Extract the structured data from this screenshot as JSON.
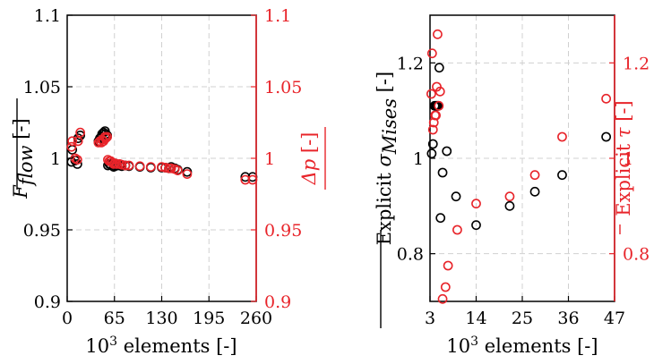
{
  "colors": {
    "left_series": "#000000",
    "right_series": "#e8242a"
  },
  "chart_data": [
    {
      "type": "scatter",
      "xlabel": "10³ elements [-]",
      "xlabel_parts": {
        "base": "10",
        "exp": "3",
        "rest": " elements [-]"
      },
      "ylabel": "F̅flow [-]",
      "ylabel_parts": {
        "main": "F",
        "sub": "flow",
        "unit": " [-]"
      },
      "y2label": "Δp̅ [-]",
      "y2label_parts": {
        "main": "Δp",
        "unit": " [-]"
      },
      "xlim": [
        0,
        260
      ],
      "ylim": [
        0.9,
        1.1
      ],
      "y2lim": [
        0.9,
        1.1
      ],
      "xticks": [
        0,
        65,
        130,
        195,
        260
      ],
      "yticks": [
        0.9,
        0.95,
        1,
        1.05,
        1.1
      ],
      "y2ticks": [
        0.9,
        0.95,
        1,
        1.05,
        1.1
      ],
      "ytick_labels": [
        "0.9",
        "0.95",
        "1",
        "1.05",
        "1.1"
      ],
      "grid": true,
      "series": [
        {
          "axis": "left",
          "color": "#000000",
          "x": [
            6,
            7,
            11,
            14,
            15,
            18,
            43,
            45,
            47,
            48,
            50,
            52,
            53,
            55,
            56,
            58,
            60,
            62,
            64,
            66,
            68,
            72,
            75,
            80,
            85,
            100,
            115,
            130,
            135,
            140,
            143,
            148,
            152,
            165,
            245,
            255
          ],
          "y": [
            0.9975,
            1.006,
            0.9985,
            0.996,
            1.014,
            1.016,
            1.012,
            1.014,
            1.015,
            1.017,
            1.018,
            1.019,
            1.017,
            1.016,
            0.995,
            0.996,
            0.9955,
            0.997,
            0.994,
            0.9945,
            0.995,
            0.995,
            0.9945,
            0.995,
            0.9945,
            0.994,
            0.9935,
            0.9935,
            0.9935,
            0.993,
            0.994,
            0.993,
            0.992,
            0.9905,
            0.987,
            0.987
          ]
        },
        {
          "axis": "right",
          "color": "#e8242a",
          "x": [
            6,
            7,
            11,
            14,
            15,
            18,
            43,
            45,
            47,
            48,
            50,
            52,
            53,
            55,
            56,
            58,
            60,
            62,
            64,
            66,
            68,
            72,
            75,
            80,
            85,
            100,
            115,
            130,
            135,
            140,
            143,
            148,
            152,
            165,
            245,
            255
          ],
          "y": [
            1.008,
            1.012,
            1.0,
            0.999,
            1.012,
            1.018,
            1.011,
            1.012,
            1.011,
            1.013,
            1.012,
            1.015,
            1.014,
            1.015,
            0.999,
            0.998,
            0.998,
            0.997,
            0.996,
            0.9965,
            0.996,
            0.996,
            0.9955,
            0.995,
            0.995,
            0.9945,
            0.994,
            0.994,
            0.9935,
            0.993,
            0.993,
            0.9925,
            0.9915,
            0.989,
            0.985,
            0.985
          ]
        }
      ]
    },
    {
      "type": "scatter",
      "xlabel": "10³ elements [-]",
      "xlabel_parts": {
        "base": "10",
        "exp": "3",
        "rest": " elements [-]"
      },
      "ylabel": "Explicit σ̅Mises [-]",
      "ylabel_parts": {
        "pre": "Explicit ",
        "main": "σ",
        "sub": "Mises",
        "unit": " [-]"
      },
      "y2label": "Explicit τ̅ [-]",
      "y2label_parts": {
        "pre": "Explicit ",
        "main": "τ",
        "unit": " [-]"
      },
      "xlim": [
        3,
        47
      ],
      "ylim": [
        0.7,
        1.3
      ],
      "y2lim": [
        0.7,
        1.3
      ],
      "xticks": [
        3,
        14,
        25,
        36,
        47
      ],
      "yticks": [
        0.8,
        1.0,
        1.2
      ],
      "ytick_labels": [
        "0.8",
        "1",
        "1.2"
      ],
      "y2ticks": [
        0.8,
        1.0,
        1.2
      ],
      "y2tick_labels": [
        "0.8",
        "1",
        "1.2"
      ],
      "grid": true,
      "series": [
        {
          "axis": "left",
          "color": "#000000",
          "x": [
            3.4,
            3.7,
            4.1,
            4.4,
            4.6,
            4.8,
            5.0,
            5.2,
            5.5,
            6.0,
            7.0,
            9.2,
            14.0,
            22.0,
            28.0,
            34.5,
            45.0
          ],
          "y": [
            1.01,
            1.03,
            1.11,
            1.11,
            1.11,
            1.11,
            1.11,
            1.19,
            0.875,
            0.97,
            1.015,
            0.92,
            0.86,
            0.9,
            0.93,
            0.965,
            1.045
          ]
        },
        {
          "axis": "right",
          "color": "#e8242a",
          "x": [
            3.3,
            3.5,
            3.7,
            3.9,
            4.2,
            4.4,
            4.6,
            4.8,
            5.1,
            5.4,
            6.0,
            6.7,
            7.3,
            9.5,
            14.0,
            22.0,
            28.0,
            34.5,
            45.0
          ],
          "y": [
            1.135,
            1.22,
            1.06,
            1.075,
            1.09,
            1.09,
            1.15,
            1.26,
            1.11,
            1.14,
            0.705,
            0.73,
            0.775,
            0.85,
            0.905,
            0.92,
            0.965,
            1.045,
            1.125
          ]
        }
      ]
    }
  ]
}
